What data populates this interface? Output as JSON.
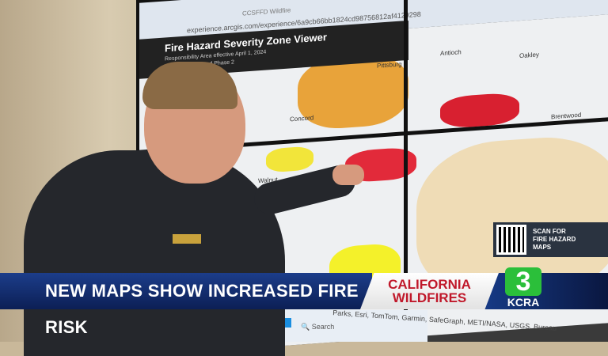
{
  "browser": {
    "tab_label": "CCSFFD Wildfire",
    "url": "experience.arcgis.com/experience/6a9cb66bb1824cd98756812af4129298"
  },
  "app": {
    "title": "Fire Hazard Severity Zone Viewer",
    "subtitle": "Responsibility Area effective April 1, 2024",
    "subtitle2": "Area - Phase 1 and Phase 2"
  },
  "map": {
    "places": [
      "Pittsburg",
      "Antioch",
      "Oakley",
      "Concord",
      "Brentwood",
      "Walnut"
    ],
    "attribution": "Parks, Esri, TomTom, Garmin, SafeGraph, METI/NASA, USGS, Bureau",
    "search_placeholder": "Search"
  },
  "qr": {
    "text_lines": [
      "SCAN FOR",
      "FIRE HAZARD",
      "MAPS"
    ]
  },
  "lower_third": {
    "headline": "NEW MAPS SHOW INCREASED FIRE RISK",
    "topic_line1": "CALIFORNIA",
    "topic_line2": "WILDFIRES",
    "logo_number": "3",
    "logo_text": "KCRA"
  },
  "colors": {
    "headline_bg": "#1c3d8a",
    "topic_text": "#c0182a",
    "logo_green": "#2bbf3a"
  }
}
